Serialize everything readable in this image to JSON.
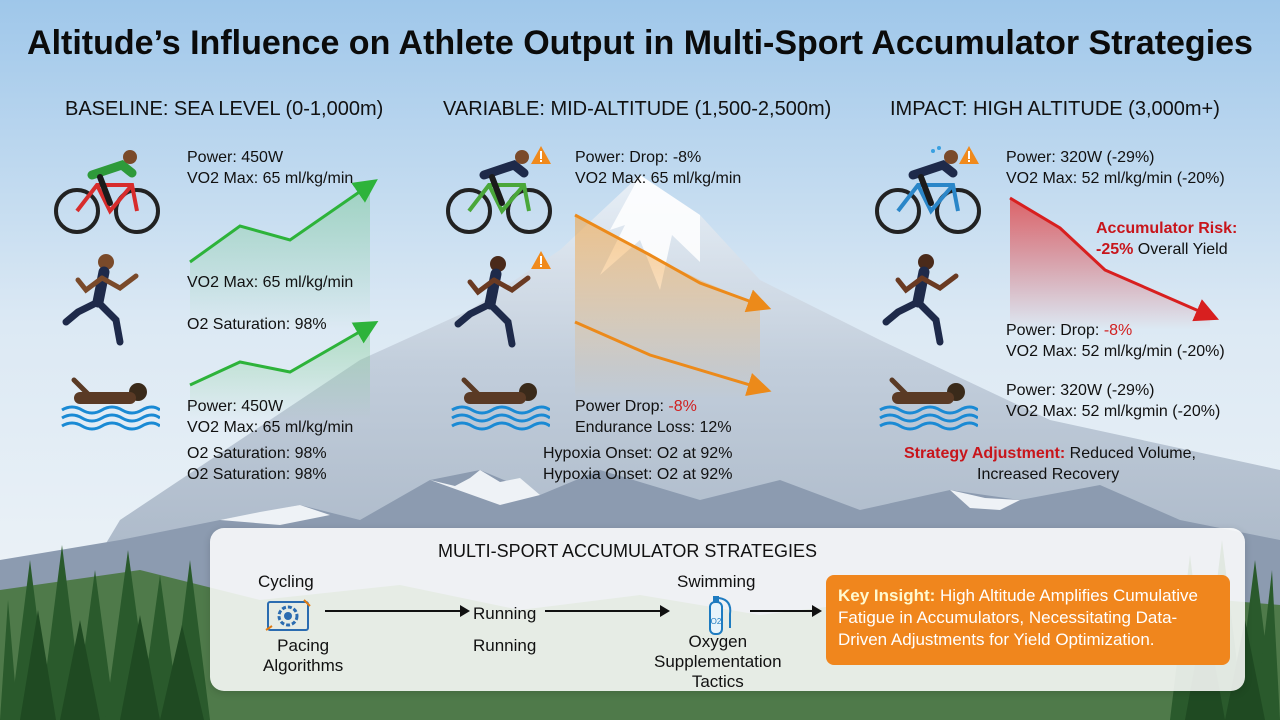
{
  "title": "Altitude’s Influence on Athlete Output in Multi-Sport Accumulator Strategies",
  "columns": {
    "baseline": {
      "heading": "BASELINE: SEA LEVEL (0-1,000m)",
      "cycling_power": "Power: 450W",
      "cycling_vo2": "VO2 Max: 65 ml/kg/min",
      "running_vo2": "VO2 Max: 65 ml/kg/min",
      "running_o2": "O2 Saturation: 98%",
      "swim_power": "Power: 450W",
      "swim_vo2": "VO2 Max: 65 ml/kg/min",
      "swim_o2_a": "O2 Saturation: 98%",
      "swim_o2_b": "O2 Saturation: 98%"
    },
    "mid": {
      "heading": "VARIABLE: MID-ALTITUDE (1,500-2,500m)",
      "cycling_power": "Power: Drop: -8%",
      "cycling_vo2": "VO2 Max: 65 ml/kg/min",
      "swim_power_label": "Power Drop: ",
      "swim_power_value": "-8%",
      "swim_endurance": "Endurance Loss: 12%",
      "hypoxia_a": "Hypoxia Onset: O2 at 92%",
      "hypoxia_b": "Hypoxia Onset: O2 at 92%"
    },
    "high": {
      "heading": "IMPACT: HIGH ALTITUDE (3,000m+)",
      "cycling_power": "Power: 320W (-29%)",
      "cycling_vo2": "VO2 Max: 52 ml/kg/min (-20%)",
      "risk_label": "Accumulator Risk:",
      "risk_value": "-25%",
      "risk_rest": " Overall Yield",
      "running_power_label": "Power: Drop: ",
      "running_power_value": "-8%",
      "running_vo2": "VO2 Max: 52 ml/kg/min (-20%)",
      "swim_power": "Power: 320W (-29%)",
      "swim_vo2": "VO2 Max: 52 ml/kgmin (-20%)",
      "strategy_label": "Strategy Adjustment:",
      "strategy_rest": " Reduced Volume,",
      "strategy_line2": "Increased Recovery"
    }
  },
  "strategies": {
    "title": "MULTI-SPORT ACCUMULATOR STRATEGIES",
    "cycling": "Cycling",
    "pacing_line1": "Pacing",
    "pacing_line2": "Algorithms",
    "running_a": "Running",
    "running_b": "Running",
    "swimming": "Swimming",
    "oxygen_line1": "Oxygen",
    "oxygen_line2": "Supplementation",
    "oxygen_line3": "Tactics",
    "insight_label": "Key Insight:",
    "insight_text": " High Altitude Amplifies Cumulative Fatigue in Accumulators, Necessitating Data-Driven Adjustments for Yield Optimization."
  },
  "icons": {
    "cyclist": "cyclist-icon",
    "runner": "runner-icon",
    "swimmer": "swimmer-icon",
    "warning": "warning-icon",
    "gear": "gear-icon",
    "oxygen": "oxygen-tank-icon"
  },
  "colors": {
    "green_trend": "#2db33a",
    "orange_trend": "#ec8a1a",
    "red_trend": "#d81f1f",
    "insight_bg": "#f0861d"
  }
}
